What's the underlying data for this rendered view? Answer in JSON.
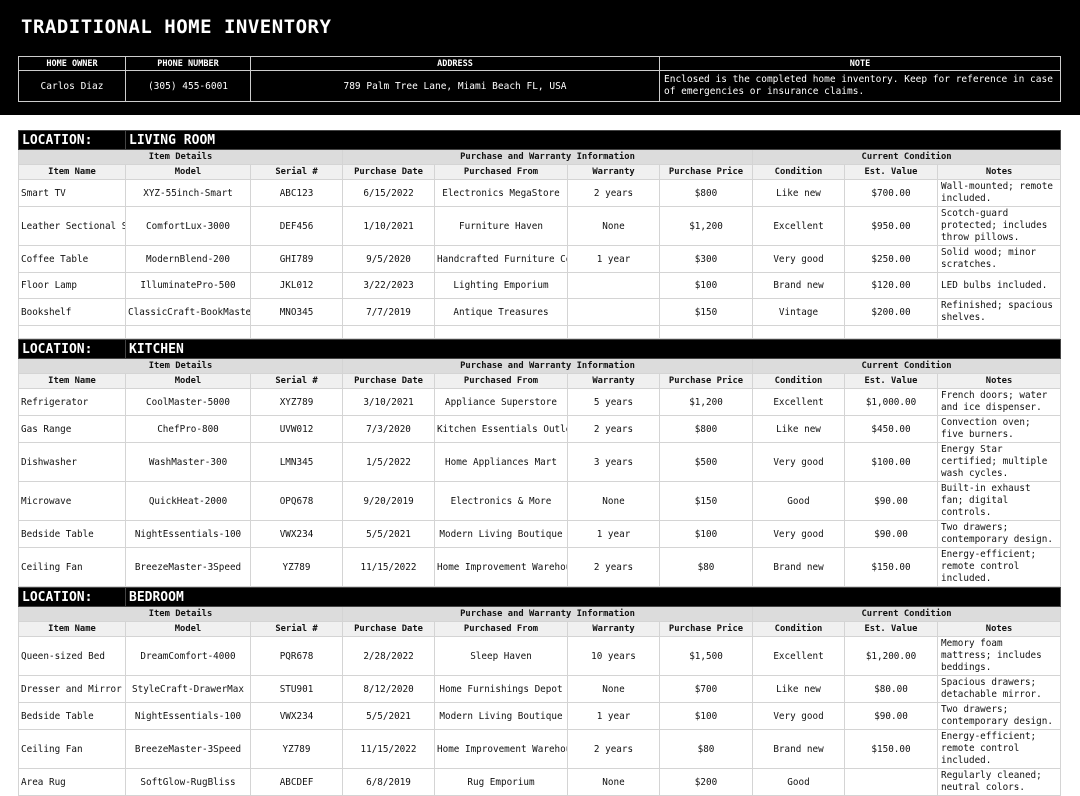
{
  "title": "TRADITIONAL HOME INVENTORY",
  "info": {
    "headers": [
      "HOME OWNER",
      "PHONE NUMBER",
      "ADDRESS",
      "NOTE"
    ],
    "values": [
      "Carlos Diaz",
      "(305) 455-6001",
      "789 Palm Tree Lane, Miami Beach FL, USA",
      "Enclosed is the completed home inventory. Keep for reference in case of emergencies or insurance claims."
    ]
  },
  "location_label": "LOCATION:",
  "groups": [
    "Item Details",
    "Purchase and Warranty Information",
    "Current Condition"
  ],
  "columns": [
    "Item Name",
    "Model",
    "Serial #",
    "Purchase Date",
    "Purchased From",
    "Warranty",
    "Purchase Price",
    "Condition",
    "Est. Value",
    "Notes"
  ],
  "sections": [
    {
      "location": "LIVING ROOM",
      "rows": [
        [
          "Smart TV",
          "XYZ-55inch-Smart",
          "ABC123",
          "6/15/2022",
          "Electronics MegaStore",
          "2 years",
          "$800",
          "Like new",
          "$700.00",
          "Wall-mounted; remote included."
        ],
        [
          "Leather Sectional Sofa",
          "ComfortLux-3000",
          "DEF456",
          "1/10/2021",
          "Furniture Haven",
          "None",
          "$1,200",
          "Excellent",
          "$950.00",
          "Scotch-guard protected; includes throw pillows."
        ],
        [
          "Coffee Table",
          "ModernBlend-200",
          "GHI789",
          "9/5/2020",
          "Handcrafted Furniture Co.",
          "1 year",
          "$300",
          "Very good",
          "$250.00",
          "Solid wood; minor scratches."
        ],
        [
          "Floor Lamp",
          "IlluminatePro-500",
          "JKL012",
          "3/22/2023",
          "Lighting Emporium",
          "",
          "$100",
          "Brand new",
          "$120.00",
          "LED bulbs included."
        ],
        [
          "Bookshelf",
          "ClassicCraft-BookMaster",
          "MNO345",
          "7/7/2019",
          "Antique Treasures",
          "",
          "$150",
          "Vintage",
          "$200.00",
          "Refinished; spacious shelves."
        ]
      ]
    },
    {
      "location": "KITCHEN",
      "rows": [
        [
          "Refrigerator",
          "CoolMaster-5000",
          "XYZ789",
          "3/10/2021",
          "Appliance Superstore",
          "5 years",
          "$1,200",
          "Excellent",
          "$1,000.00",
          "French doors; water and ice dispenser."
        ],
        [
          "Gas Range",
          "ChefPro-800",
          "UVW012",
          "7/3/2020",
          "Kitchen Essentials Outlet",
          "2 years",
          "$800",
          "Like new",
          "$450.00",
          "Convection oven; five burners."
        ],
        [
          "Dishwasher",
          "WashMaster-300",
          "LMN345",
          "1/5/2022",
          "Home Appliances Mart",
          "3 years",
          "$500",
          "Very good",
          "$100.00",
          "Energy Star certified; multiple wash cycles."
        ],
        [
          "Microwave",
          "QuickHeat-2000",
          "OPQ678",
          "9/20/2019",
          "Electronics & More",
          "None",
          "$150",
          "Good",
          "$90.00",
          "Built-in exhaust fan; digital controls."
        ],
        [
          "Bedside Table",
          "NightEssentials-100",
          "VWX234",
          "5/5/2021",
          "Modern Living Boutique",
          "1 year",
          "$100",
          "Very good",
          "$90.00",
          "Two drawers; contemporary design."
        ],
        [
          "Ceiling Fan",
          "BreezeMaster-3Speed",
          "YZ789",
          "11/15/2022",
          "Home Improvement Warehouse",
          "2 years",
          "$80",
          "Brand new",
          "$150.00",
          "Energy-efficient; remote control included."
        ]
      ]
    },
    {
      "location": "BEDROOM",
      "rows": [
        [
          "Queen-sized Bed",
          "DreamComfort-4000",
          "PQR678",
          "2/28/2022",
          "Sleep Haven",
          "10 years",
          "$1,500",
          "Excellent",
          "$1,200.00",
          "Memory foam mattress; includes beddings."
        ],
        [
          "Dresser and Mirror",
          "StyleCraft-DrawerMax",
          "STU901",
          "8/12/2020",
          "Home Furnishings Depot",
          "None",
          "$700",
          "Like new",
          "$80.00",
          "Spacious drawers; detachable mirror."
        ],
        [
          "Bedside Table",
          "NightEssentials-100",
          "VWX234",
          "5/5/2021",
          "Modern Living Boutique",
          "1 year",
          "$100",
          "Very good",
          "$90.00",
          "Two drawers; contemporary design."
        ],
        [
          "Ceiling Fan",
          "BreezeMaster-3Speed",
          "YZ789",
          "11/15/2022",
          "Home Improvement Warehouse",
          "2 years",
          "$80",
          "Brand new",
          "$150.00",
          "Energy-efficient; remote control included."
        ],
        [
          "Area Rug",
          "SoftGlow-RugBliss",
          "ABCDEF",
          "6/8/2019",
          "Rug Emporium",
          "None",
          "$200",
          "Good",
          "",
          "Regularly cleaned; neutral colors."
        ]
      ]
    }
  ]
}
